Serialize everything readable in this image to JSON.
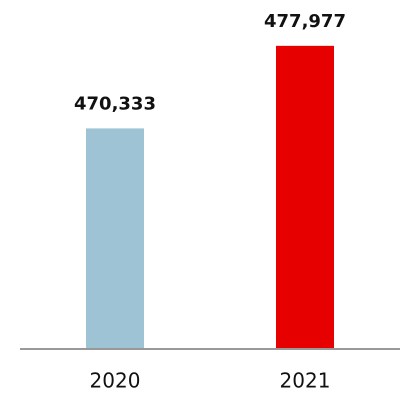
{
  "chart_data": {
    "type": "bar",
    "categories": [
      "2020",
      "2021"
    ],
    "values": [
      470333,
      477977
    ],
    "value_labels": [
      "470,333",
      "477,977"
    ],
    "colors": [
      "#9dc3d4",
      "#e60000"
    ],
    "ylim": [
      450000,
      480000
    ]
  }
}
